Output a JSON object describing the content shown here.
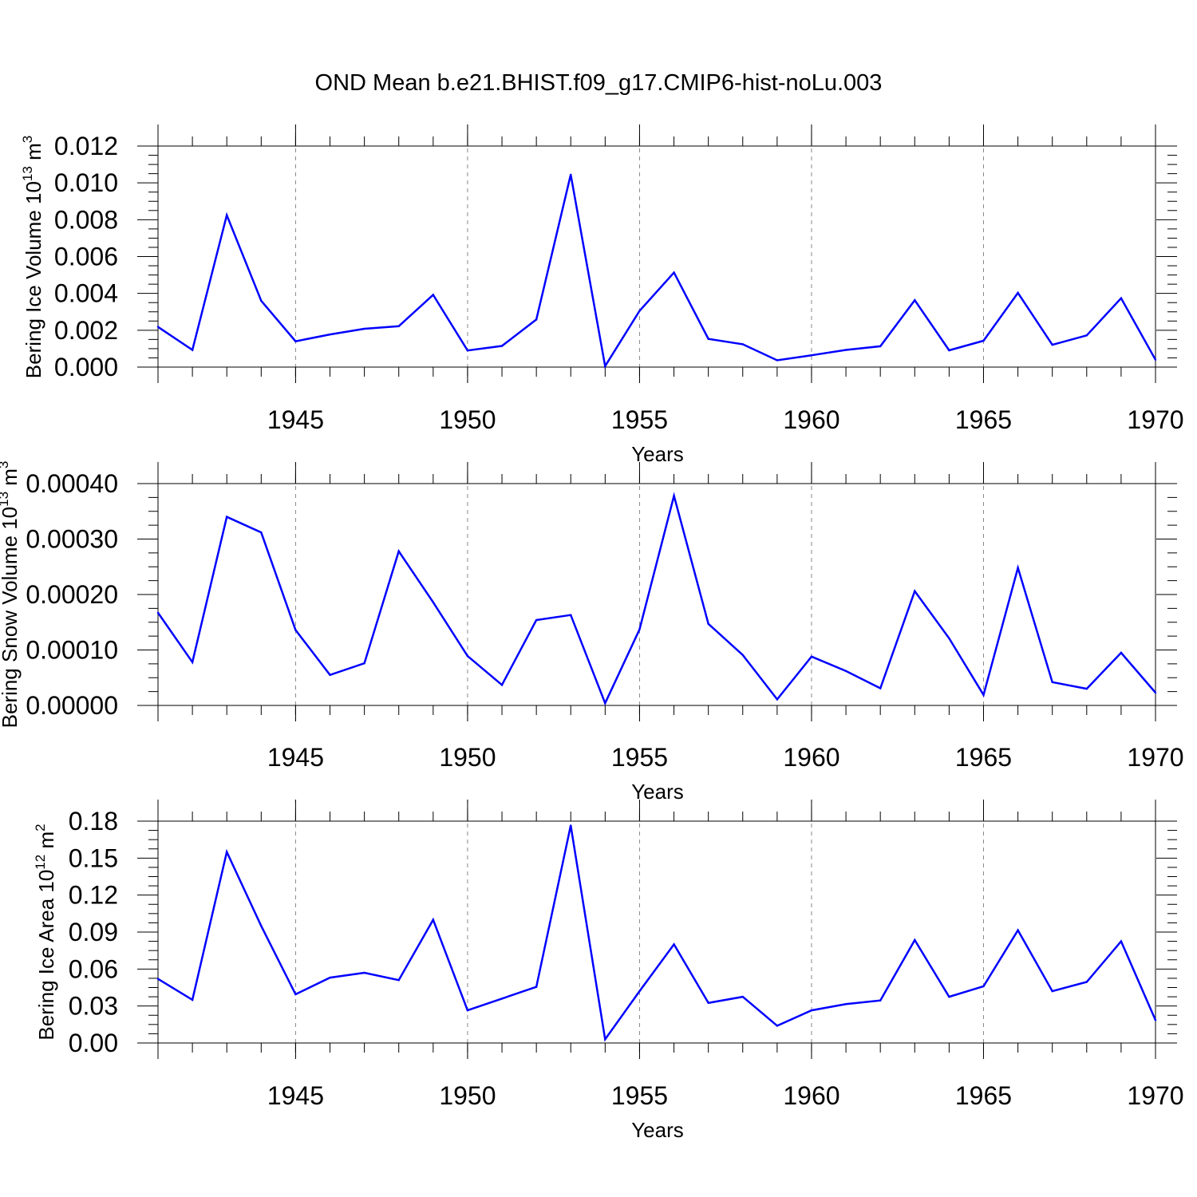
{
  "title": "OND Mean b.e21.BHIST.f09_g17.CMIP6-hist-noLu.003",
  "colors": {
    "line": "#0000ff",
    "axis": "#000000",
    "grid": "#888888"
  },
  "chart_data": [
    {
      "type": "line",
      "ylabel": {
        "text": "Bering Ice Volume 10",
        "exp": "13",
        "unit": "m",
        "unit_exp": "3"
      },
      "xlabel": "Years",
      "xlim": [
        1941,
        1970
      ],
      "ylim": [
        0,
        0.012
      ],
      "x_ticks": [
        "1945",
        "1950",
        "1955",
        "1960",
        "1965",
        "1970"
      ],
      "y_ticks": [
        "0.000",
        "0.002",
        "0.004",
        "0.006",
        "0.008",
        "0.010",
        "0.012"
      ],
      "x": [
        1941,
        1942,
        1943,
        1944,
        1945,
        1946,
        1947,
        1948,
        1949,
        1950,
        1951,
        1952,
        1953,
        1954,
        1955,
        1956,
        1957,
        1958,
        1959,
        1960,
        1961,
        1962,
        1963,
        1964,
        1965,
        1966,
        1967,
        1968,
        1969,
        1970
      ],
      "values": [
        0.00218,
        0.00093,
        0.00825,
        0.0036,
        0.0014,
        0.00177,
        0.00208,
        0.00222,
        0.00392,
        0.0009,
        0.00115,
        0.00258,
        0.01045,
        5e-05,
        0.00305,
        0.00513,
        0.00153,
        0.00124,
        0.00037,
        0.00064,
        0.00093,
        0.00113,
        0.00363,
        0.00091,
        0.00143,
        0.00403,
        0.00121,
        0.00172,
        0.00374,
        0.0004
      ]
    },
    {
      "type": "line",
      "ylabel": {
        "text": "Bering Snow Volume 10",
        "exp": "13",
        "unit": "m",
        "unit_exp": "3"
      },
      "xlabel": "Years",
      "xlim": [
        1941,
        1970
      ],
      "ylim": [
        0,
        0.0004
      ],
      "x_ticks": [
        "1945",
        "1950",
        "1955",
        "1960",
        "1965",
        "1970"
      ],
      "y_ticks": [
        "0.00000",
        "0.00010",
        "0.00020",
        "0.00030",
        "0.00040"
      ],
      "x": [
        1941,
        1942,
        1943,
        1944,
        1945,
        1946,
        1947,
        1948,
        1949,
        1950,
        1951,
        1952,
        1953,
        1954,
        1955,
        1956,
        1957,
        1958,
        1959,
        1960,
        1961,
        1962,
        1963,
        1964,
        1965,
        1966,
        1967,
        1968,
        1969,
        1970
      ],
      "values": [
        0.000167,
        7.8e-05,
        0.00034,
        0.000312,
        0.000136,
        5.5e-05,
        7.6e-05,
        0.000278,
        0.000186,
        8.9e-05,
        3.7e-05,
        0.000154,
        0.000163,
        4e-06,
        0.000137,
        0.000378,
        0.000147,
        9.1e-05,
        1.1e-05,
        8.8e-05,
        6.2e-05,
        3.1e-05,
        0.000206,
        0.000121,
        1.9e-05,
        0.000248,
        4.2e-05,
        3e-05,
        9.5e-05,
        2.3e-05
      ]
    },
    {
      "type": "line",
      "ylabel": {
        "text": "Bering Ice Area 10",
        "exp": "12",
        "unit": "m",
        "unit_exp": "2"
      },
      "xlabel": "Years",
      "xlim": [
        1941,
        1970
      ],
      "ylim": [
        0,
        0.18
      ],
      "x_ticks": [
        "1945",
        "1950",
        "1955",
        "1960",
        "1965",
        "1970"
      ],
      "y_ticks": [
        "0.00",
        "0.03",
        "0.06",
        "0.09",
        "0.12",
        "0.15",
        "0.18"
      ],
      "x": [
        1941,
        1942,
        1943,
        1944,
        1945,
        1946,
        1947,
        1948,
        1949,
        1950,
        1951,
        1952,
        1953,
        1954,
        1955,
        1956,
        1957,
        1958,
        1959,
        1960,
        1961,
        1962,
        1963,
        1964,
        1965,
        1966,
        1967,
        1968,
        1969,
        1970
      ],
      "values": [
        0.052,
        0.035,
        0.155,
        0.095,
        0.0395,
        0.053,
        0.057,
        0.051,
        0.1,
        0.0265,
        0.036,
        0.0455,
        0.1765,
        0.003,
        0.042,
        0.08,
        0.0325,
        0.0375,
        0.014,
        0.0265,
        0.0315,
        0.0345,
        0.0835,
        0.0375,
        0.046,
        0.0915,
        0.042,
        0.0495,
        0.0825,
        0.0185
      ]
    }
  ]
}
